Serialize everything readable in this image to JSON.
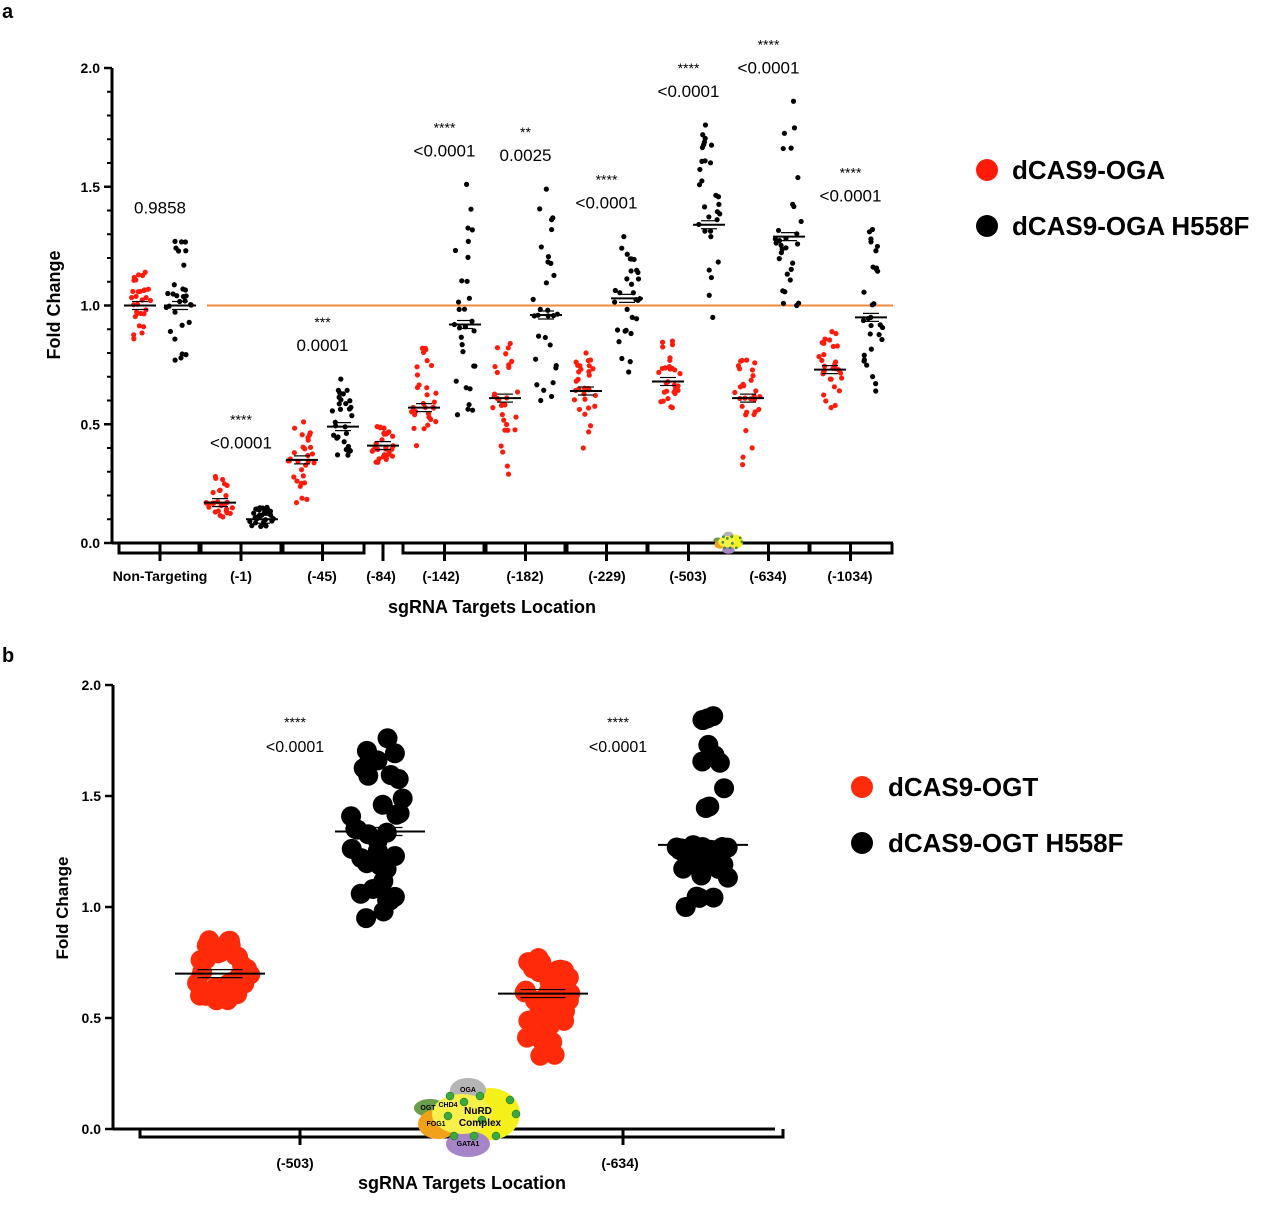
{
  "chart_data": [
    {
      "panel_label": "a",
      "type": "scatter",
      "ylabel": "Fold Change",
      "xlabel": "sgRNA Targets Location",
      "ylim": [
        0,
        2.0
      ],
      "yticks": [
        "0.0",
        "0.5",
        "1.0",
        "1.5",
        "2.0"
      ],
      "reference_line": 1.0,
      "reference_color": "#f08a3c",
      "grid": false,
      "legend_position": "right",
      "series": [
        {
          "name": "dCAS9-OGA",
          "color": "#ff1a0a"
        },
        {
          "name": "dCAS9-OGA H558F",
          "color": "#000000"
        }
      ],
      "categories": [
        {
          "label": "Non-Targeting",
          "stars": "",
          "p": "0.9858",
          "red": {
            "mean": 1.0,
            "min": 0.86,
            "max": 1.14
          },
          "black": {
            "mean": 1.0,
            "min": 0.77,
            "max": 1.27
          }
        },
        {
          "label": "(-1)",
          "stars": "****",
          "p": "<0.0001",
          "red": {
            "mean": 0.17,
            "min": 0.11,
            "max": 0.28
          },
          "black": {
            "mean": 0.1,
            "min": 0.07,
            "max": 0.15
          }
        },
        {
          "label": "(-45)",
          "stars": "***",
          "p": "0.0001",
          "red": {
            "mean": 0.35,
            "min": 0.17,
            "max": 0.51
          },
          "black": {
            "mean": 0.49,
            "min": 0.37,
            "max": 0.69
          }
        },
        {
          "label": "(-84)",
          "stars": "",
          "p": "",
          "red": {
            "mean": 0.41,
            "min": 0.34,
            "max": 0.49
          }
        },
        {
          "label": "(-142)",
          "stars": "****",
          "p": "<0.0001",
          "red": {
            "mean": 0.57,
            "min": 0.41,
            "max": 0.82
          },
          "black": {
            "mean": 0.92,
            "min": 0.54,
            "max": 1.51
          }
        },
        {
          "label": "(-182)",
          "stars": "**",
          "p": "0.0025",
          "red": {
            "mean": 0.61,
            "min": 0.29,
            "max": 0.84
          },
          "black": {
            "mean": 0.96,
            "min": 0.6,
            "max": 1.49
          }
        },
        {
          "label": "(-229)",
          "stars": "****",
          "p": "<0.0001",
          "red": {
            "mean": 0.64,
            "min": 0.4,
            "max": 0.8
          },
          "black": {
            "mean": 1.03,
            "min": 0.72,
            "max": 1.29
          }
        },
        {
          "label": "(-503)",
          "stars": "****",
          "p": "<0.0001",
          "red": {
            "mean": 0.68,
            "min": 0.57,
            "max": 0.85
          },
          "black": {
            "mean": 1.34,
            "min": 0.95,
            "max": 1.76
          }
        },
        {
          "label": "(-634)",
          "stars": "****",
          "p": "<0.0001",
          "red": {
            "mean": 0.61,
            "min": 0.33,
            "max": 0.77
          },
          "black": {
            "mean": 1.29,
            "min": 1.0,
            "max": 1.86
          }
        },
        {
          "label": "(-1034)",
          "stars": "****",
          "p": "<0.0001",
          "red": {
            "mean": 0.73,
            "min": 0.57,
            "max": 0.89
          },
          "black": {
            "mean": 0.95,
            "min": 0.64,
            "max": 1.32
          }
        }
      ]
    },
    {
      "panel_label": "b",
      "type": "scatter",
      "ylabel": "Fold Change",
      "xlabel": "sgRNA Targets Location",
      "ylim": [
        0,
        2.0
      ],
      "yticks": [
        "0.0",
        "0.5",
        "1.0",
        "1.5",
        "2.0"
      ],
      "grid": false,
      "legend_position": "right",
      "series": [
        {
          "name": "dCAS9-OGT",
          "color": "#ff2a0a"
        },
        {
          "name": "dCAS9-OGT H558F",
          "color": "#000000"
        }
      ],
      "categories": [
        {
          "label": "(-503)",
          "stars": "****",
          "p": "<0.0001",
          "red": {
            "mean": 0.7,
            "min": 0.58,
            "max": 0.85
          },
          "black": {
            "mean": 1.34,
            "min": 0.95,
            "max": 1.76
          }
        },
        {
          "label": "(-634)",
          "stars": "****",
          "p": "<0.0001",
          "red": {
            "mean": 0.61,
            "min": 0.33,
            "max": 0.77
          },
          "black": {
            "mean": 1.28,
            "min": 1.0,
            "max": 1.86
          }
        }
      ]
    }
  ],
  "nurd_diagram": {
    "labels": [
      "OGA",
      "OGT",
      "CHD4",
      "NuRD",
      "Complex",
      "FOG1",
      "GATA1"
    ],
    "glyph": "G"
  }
}
